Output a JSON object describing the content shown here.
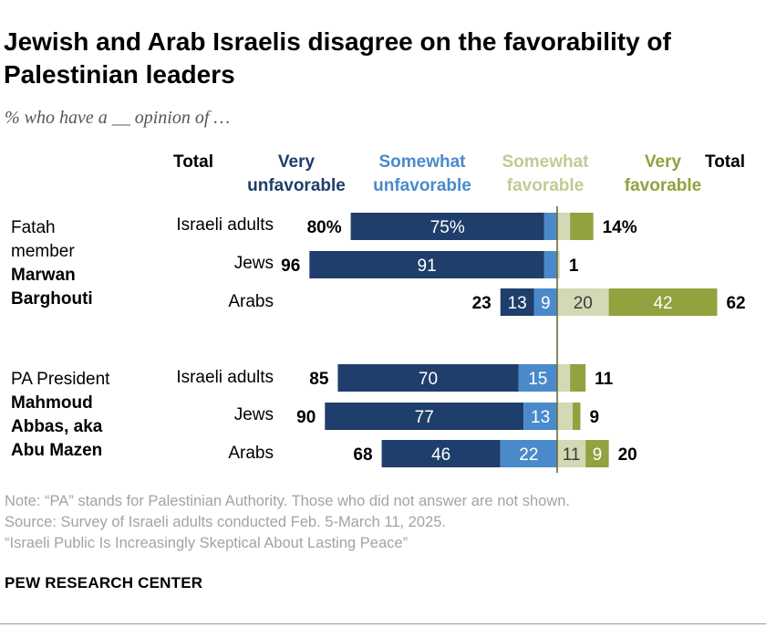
{
  "title": "Jewish and Arab Israelis disagree on the favorability of Palestinian leaders",
  "subtitle": "% who have a __ opinion of …",
  "notes": {
    "note": "Note: “PA” stands for Palestinian Authority. Those who did not answer are not shown.",
    "source": "Source: Survey of Israeli adults conducted Feb. 5-March 11, 2025.",
    "report": "“Israeli Public Is Increasingly Skeptical About Lasting Peace”"
  },
  "brand": "PEW RESEARCH CENTER",
  "headers": {
    "total_left": "Total",
    "very_unfavorable": [
      "Very",
      "unfavorable"
    ],
    "somewhat_unfavorable": [
      "Somewhat",
      "unfavorable"
    ],
    "somewhat_favorable": [
      "Somewhat",
      "favorable"
    ],
    "very_favorable": [
      "Very",
      "favorable"
    ],
    "total_right": "Total"
  },
  "colors": {
    "very_unfavorable": "#1f3e6b",
    "somewhat_unfavorable": "#4a8acb",
    "somewhat_favorable": "#d2d9b4",
    "very_favorable": "#93a13e",
    "axis": "#6b6b3a"
  },
  "chart_data": {
    "type": "diverging-stacked-bar",
    "title": "Jewish and Arab Israelis disagree on the favorability of Palestinian leaders",
    "legend": [
      "Very unfavorable",
      "Somewhat unfavorable",
      "Somewhat favorable",
      "Very favorable"
    ],
    "groups": [
      {
        "lead": "Fatah member",
        "name": "Marwan Barghouti",
        "rows": [
          {
            "label": "Israeli adults",
            "very_unfav": 75,
            "somewhat_unfav": 5,
            "somewhat_fav": 5,
            "very_fav": 9,
            "labels": {
              "very_unfav": "75%",
              "somewhat_unfav": "",
              "somewhat_fav": "",
              "very_fav": ""
            },
            "total_unfav": "80%",
            "total_fav": "14%"
          },
          {
            "label": "Jews",
            "very_unfav": 91,
            "somewhat_unfav": 5,
            "somewhat_fav": 1,
            "very_fav": 0,
            "labels": {
              "very_unfav": "91",
              "somewhat_unfav": "",
              "somewhat_fav": "",
              "very_fav": ""
            },
            "total_unfav": "96",
            "total_fav": "1"
          },
          {
            "label": "Arabs",
            "very_unfav": 13,
            "somewhat_unfav": 9,
            "somewhat_fav": 20,
            "very_fav": 42,
            "labels": {
              "very_unfav": "13",
              "somewhat_unfav": "9",
              "somewhat_fav": "20",
              "very_fav": "42"
            },
            "total_unfav": "23",
            "total_fav": "62"
          }
        ]
      },
      {
        "lead": "PA President",
        "name": "Mahmoud Abbas, aka Abu Mazen",
        "rows": [
          {
            "label": "Israeli adults",
            "very_unfav": 70,
            "somewhat_unfav": 15,
            "somewhat_fav": 5,
            "very_fav": 6,
            "labels": {
              "very_unfav": "70",
              "somewhat_unfav": "15",
              "somewhat_fav": "",
              "very_fav": ""
            },
            "total_unfav": "85",
            "total_fav": "11"
          },
          {
            "label": "Jews",
            "very_unfav": 77,
            "somewhat_unfav": 13,
            "somewhat_fav": 6,
            "very_fav": 3,
            "labels": {
              "very_unfav": "77",
              "somewhat_unfav": "13",
              "somewhat_fav": "",
              "very_fav": ""
            },
            "total_unfav": "90",
            "total_fav": "9"
          },
          {
            "label": "Arabs",
            "very_unfav": 46,
            "somewhat_unfav": 22,
            "somewhat_fav": 11,
            "very_fav": 9,
            "labels": {
              "very_unfav": "46",
              "somewhat_unfav": "22",
              "somewhat_fav": "11",
              "very_fav": "9"
            },
            "total_unfav": "68",
            "total_fav": "20"
          }
        ]
      }
    ]
  }
}
